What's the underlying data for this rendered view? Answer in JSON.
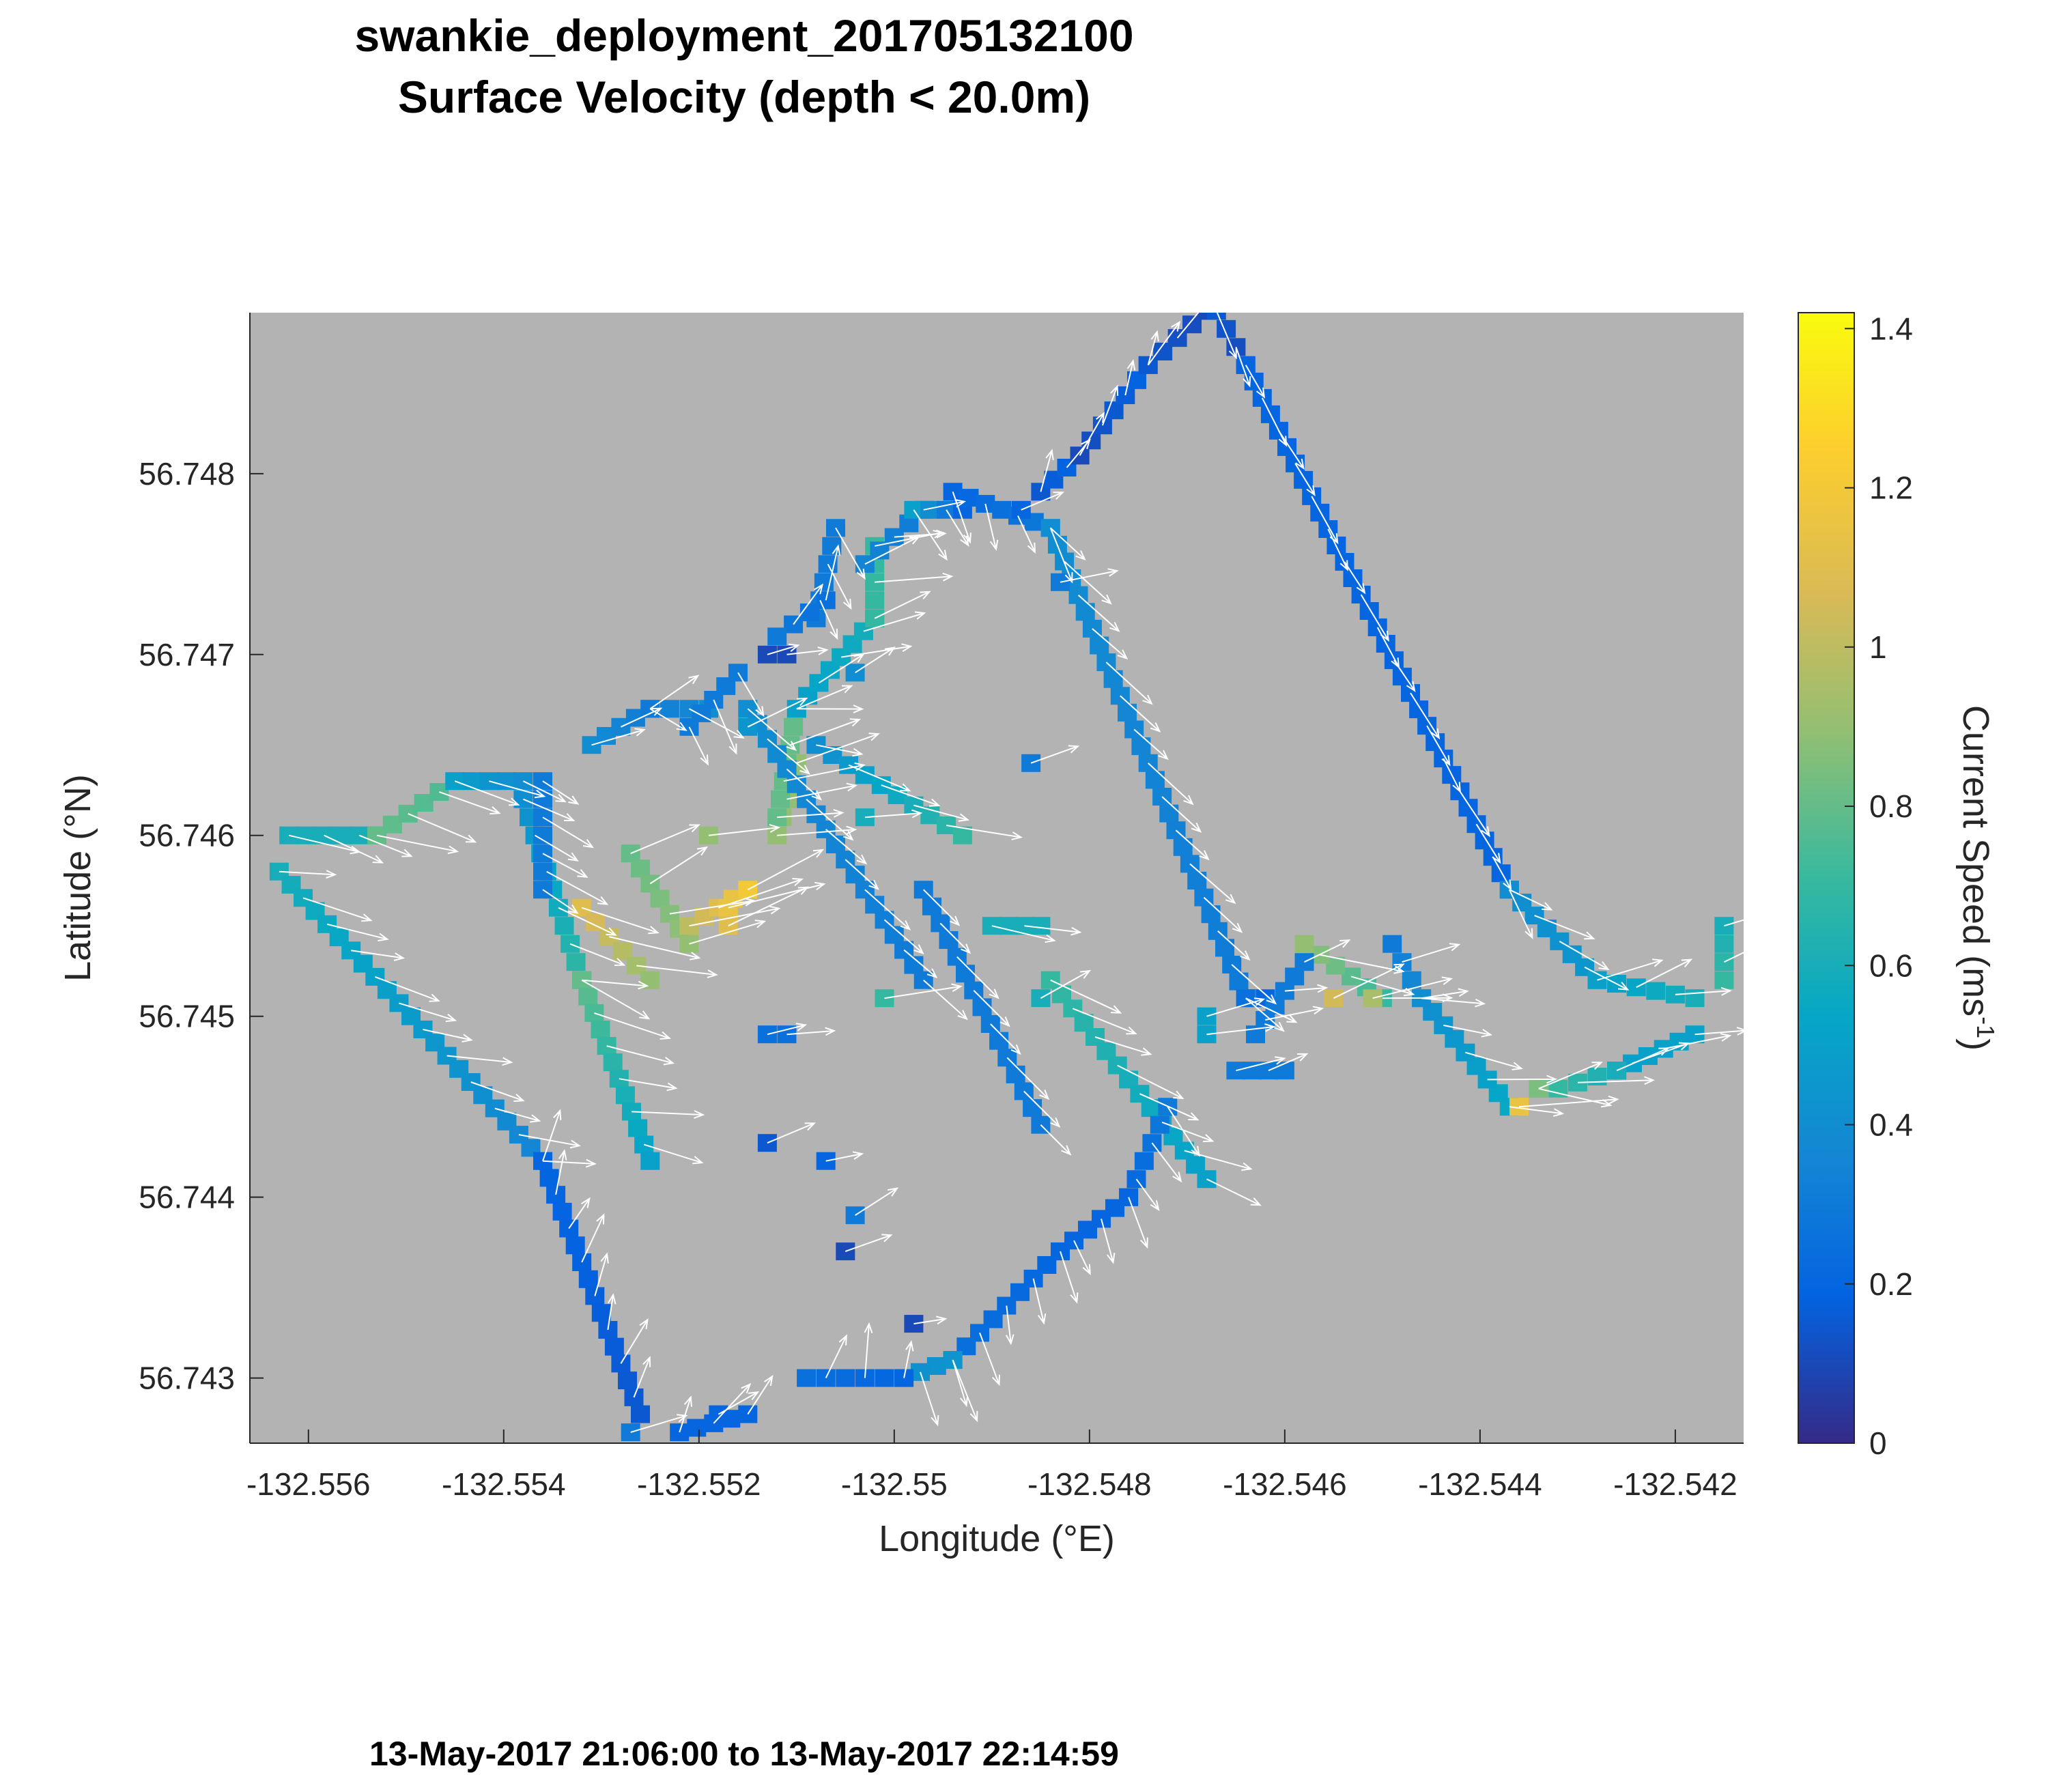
{
  "title": "swankie_deployment_201705132100",
  "subtitle": "Surface Velocity (depth < 20.0m)",
  "footer": "13-May-2017 21:06:00 to 13-May-2017 22:14:59",
  "colors": {
    "background": "#b3b3b3",
    "arrow": "#ffffff",
    "colormap": "parula"
  },
  "chart_data": {
    "type": "heatmap",
    "title": "swankie_deployment_201705132100",
    "subtitle": "Surface Velocity (depth < 20.0m)",
    "xlabel": "Longitude (°E)",
    "ylabel": "Latitude (°N)",
    "xlim": [
      -132.5566,
      -132.5413
    ],
    "ylim": [
      56.74264,
      56.74889
    ],
    "xticks": [
      -132.556,
      -132.554,
      -132.552,
      -132.55,
      -132.548,
      -132.546,
      -132.544,
      -132.542
    ],
    "xtick_labels": [
      "-132.556",
      "-132.554",
      "-132.552",
      "-132.55",
      "-132.548",
      "-132.546",
      "-132.544",
      "-132.542"
    ],
    "yticks": [
      56.743,
      56.744,
      56.745,
      56.746,
      56.747,
      56.748
    ],
    "ytick_labels": [
      "56.743",
      "56.744",
      "56.745",
      "56.746",
      "56.747",
      "56.748"
    ],
    "grid": false,
    "colorbar": {
      "label": "Current Speed (ms",
      "label_sup": "-1",
      "label_end": ")",
      "range": [
        0,
        1.42
      ],
      "ticks": [
        0,
        0.2,
        0.4,
        0.6,
        0.8,
        1,
        1.2,
        1.4
      ],
      "tick_labels": [
        "0",
        "0.2",
        "0.4",
        "0.6",
        "0.8",
        "1",
        "1.2",
        "1.4"
      ]
    },
    "cell_size_deg": [
      0.0002,
      0.0001
    ],
    "tracks": [
      {
        "from": [
          -132.5563,
          56.7458
        ],
        "to": [
          -132.5536,
          56.7442
        ],
        "speed": [
          0.6,
          0.35
        ],
        "dir": [
          1,
          -0.25
        ]
      },
      {
        "from": [
          -132.5536,
          56.7442
        ],
        "to": [
          -132.5526,
          56.7428
        ],
        "speed": [
          0.2,
          0.15
        ],
        "dir": [
          0.4,
          1
        ]
      },
      {
        "from": [
          -132.5522,
          56.7427
        ],
        "to": [
          -132.5515,
          56.7428
        ],
        "speed": [
          0.2,
          0.2
        ],
        "dir": [
          0.5,
          1
        ]
      },
      {
        "from": [
          -132.5562,
          56.746
        ],
        "to": [
          -132.5553,
          56.746
        ],
        "speed": [
          0.6,
          0.6
        ],
        "dir": [
          1,
          -0.4
        ]
      },
      {
        "from": [
          -132.5553,
          56.746
        ],
        "to": [
          -132.5545,
          56.7463
        ],
        "speed": [
          0.8,
          0.75
        ],
        "dir": [
          1,
          -0.3
        ]
      },
      {
        "from": [
          -132.5545,
          56.7463
        ],
        "to": [
          -132.5538,
          56.7463
        ],
        "speed": [
          0.5,
          0.4
        ],
        "dir": [
          1,
          -0.4
        ]
      },
      {
        "from": [
          -132.5538,
          56.7462
        ],
        "to": [
          -132.5532,
          56.7452
        ],
        "speed": [
          0.4,
          0.7
        ],
        "dir": [
          1,
          -0.5
        ]
      },
      {
        "from": [
          -132.5532,
          56.7452
        ],
        "to": [
          -132.5525,
          56.7442
        ],
        "speed": [
          0.8,
          0.5
        ],
        "dir": [
          1,
          -0.2
        ]
      },
      {
        "from": [
          -132.5532,
          56.7456
        ],
        "to": [
          -132.5525,
          56.7452
        ],
        "speed": [
          1.1,
          0.9
        ],
        "dir": [
          1,
          -0.3
        ]
      },
      {
        "from": [
          -132.5536,
          56.7463
        ],
        "to": [
          -132.5536,
          56.7457
        ],
        "speed": [
          0.3,
          0.3
        ],
        "dir": [
          1,
          -0.6
        ]
      },
      {
        "from": [
          -132.5527,
          56.7459
        ],
        "to": [
          -132.5521,
          56.7454
        ],
        "speed": [
          0.8,
          0.9
        ],
        "dir": [
          1,
          0.3
        ]
      },
      {
        "from": [
          -132.5521,
          56.7455
        ],
        "to": [
          -132.5515,
          56.7457
        ],
        "speed": [
          1.0,
          1.2
        ],
        "dir": [
          1,
          0.4
        ]
      },
      {
        "from": [
          -132.5531,
          56.7465
        ],
        "to": [
          -132.5525,
          56.7467
        ],
        "speed": [
          0.4,
          0.3
        ],
        "dir": [
          1,
          0.4
        ]
      },
      {
        "from": [
          -132.5525,
          56.7467
        ],
        "to": [
          -132.5519,
          56.7467
        ],
        "speed": [
          0.3,
          0.4
        ],
        "dir": [
          1,
          -0.6
        ]
      },
      {
        "from": [
          -132.5512,
          56.746
        ],
        "to": [
          -132.551,
          56.7464
        ],
        "speed": [
          0.9,
          0.9
        ],
        "dir": [
          1,
          0.3
        ]
      },
      {
        "from": [
          -132.5512,
          56.7461
        ],
        "to": [
          -132.551,
          56.7467
        ],
        "speed": [
          0.8,
          0.8
        ],
        "dir": [
          1,
          0.2
        ]
      },
      {
        "from": [
          -132.551,
          56.7467
        ],
        "to": [
          -132.5502,
          56.7472
        ],
        "speed": [
          0.5,
          0.6
        ],
        "dir": [
          1,
          0.3
        ]
      },
      {
        "from": [
          -132.5502,
          56.7472
        ],
        "to": [
          -132.5502,
          56.7476
        ],
        "speed": [
          0.7,
          0.7
        ],
        "dir": [
          1,
          0.3
        ]
      },
      {
        "from": [
          -132.5503,
          56.7475
        ],
        "to": [
          -132.5497,
          56.7478
        ],
        "speed": [
          0.35,
          0.3
        ],
        "dir": [
          1,
          0.2
        ]
      },
      {
        "from": [
          -132.5498,
          56.7478
        ],
        "to": [
          -132.5493,
          56.7478
        ],
        "speed": [
          0.5,
          0.2
        ],
        "dir": [
          0.6,
          -1
        ]
      },
      {
        "from": [
          -132.5515,
          56.7467
        ],
        "to": [
          -132.5497,
          56.7452
        ],
        "speed": [
          0.4,
          0.3
        ],
        "dir": [
          0.8,
          -0.7
        ]
      },
      {
        "from": [
          -132.5508,
          56.7465
        ],
        "to": [
          -132.5493,
          56.746
        ],
        "speed": [
          0.4,
          0.7
        ],
        "dir": [
          1,
          -0.3
        ]
      },
      {
        "from": [
          -132.5497,
          56.7457
        ],
        "to": [
          -132.5485,
          56.7444
        ],
        "speed": [
          0.3,
          0.3
        ],
        "dir": [
          0.7,
          -0.7
        ]
      },
      {
        "from": [
          -132.549,
          56.7455
        ],
        "to": [
          -132.5485,
          56.7455
        ],
        "speed": [
          0.6,
          0.6
        ],
        "dir": [
          1,
          -0.3
        ]
      },
      {
        "from": [
          -132.5484,
          56.7452
        ],
        "to": [
          -132.5468,
          56.7441
        ],
        "speed": [
          0.7,
          0.5
        ],
        "dir": [
          1,
          -0.4
        ]
      },
      {
        "from": [
          -132.5472,
          56.7445
        ],
        "to": [
          -132.5476,
          56.744
        ],
        "speed": [
          0.3,
          0.2
        ],
        "dir": [
          0.7,
          -1
        ]
      },
      {
        "from": [
          -132.5476,
          56.744
        ],
        "to": [
          -132.5483,
          56.7437
        ],
        "speed": [
          0.2,
          0.2
        ],
        "dir": [
          0.4,
          -1
        ]
      },
      {
        "from": [
          -132.5483,
          56.7437
        ],
        "to": [
          -132.5494,
          56.7431
        ],
        "speed": [
          0.2,
          0.25
        ],
        "dir": [
          0.3,
          -1
        ]
      },
      {
        "from": [
          -132.5494,
          56.7431
        ],
        "to": [
          -132.5499,
          56.743
        ],
        "speed": [
          0.45,
          0.4
        ],
        "dir": [
          0.3,
          -1
        ]
      },
      {
        "from": [
          -132.5499,
          56.743
        ],
        "to": [
          -132.5509,
          56.743
        ],
        "speed": [
          0.2,
          0.25
        ],
        "dir": [
          0.3,
          1
        ]
      },
      {
        "from": [
          -132.5521,
          56.7466
        ],
        "to": [
          -132.5516,
          56.7469
        ],
        "speed": [
          0.3,
          0.3
        ],
        "dir": [
          0.5,
          -1
        ]
      },
      {
        "from": [
          -132.5494,
          56.7479
        ],
        "to": [
          -132.5484,
          56.7477
        ],
        "speed": [
          0.2,
          0.3
        ],
        "dir": [
          0.4,
          -1
        ]
      },
      {
        "from": [
          -132.5484,
          56.7477
        ],
        "to": [
          -132.5464,
          56.7451
        ],
        "speed": [
          0.4,
          0.3
        ],
        "dir": [
          1,
          -0.9
        ]
      },
      {
        "from": [
          -132.5464,
          56.7451
        ],
        "to": [
          -132.5462,
          56.7451
        ],
        "speed": [
          0.25,
          0.2
        ],
        "dir": [
          1,
          -0.5
        ]
      },
      {
        "from": [
          -132.5485,
          56.7479
        ],
        "to": [
          -132.5481,
          56.7481
        ],
        "speed": [
          0.15,
          0.2
        ],
        "dir": [
          0.5,
          1
        ]
      },
      {
        "from": [
          -132.5481,
          56.7481
        ],
        "to": [
          -132.5474,
          56.7486
        ],
        "speed": [
          0.1,
          0.2
        ],
        "dir": [
          0.5,
          1
        ]
      },
      {
        "from": [
          -132.5474,
          56.7486
        ],
        "to": [
          -132.5468,
          56.7489
        ],
        "speed": [
          0.15,
          0.1
        ],
        "dir": [
          0.5,
          1
        ]
      },
      {
        "from": [
          -132.5467,
          56.7489
        ],
        "to": [
          -132.5464,
          56.7486
        ],
        "speed": [
          0.15,
          0.1
        ],
        "dir": [
          0.3,
          -1
        ]
      },
      {
        "from": [
          -132.5464,
          56.7486
        ],
        "to": [
          -132.5437,
          56.7457
        ],
        "speed": [
          0.2,
          0.2
        ],
        "dir": [
          0.6,
          -1
        ]
      },
      {
        "from": [
          -132.5437,
          56.7457
        ],
        "to": [
          -132.5428,
          56.7452
        ],
        "speed": [
          0.4,
          0.45
        ],
        "dir": [
          1,
          -0.5
        ]
      },
      {
        "from": [
          -132.5428,
          56.7452
        ],
        "to": [
          -132.5418,
          56.7451
        ],
        "speed": [
          0.5,
          0.6
        ],
        "dir": [
          1,
          0.2
        ]
      },
      {
        "from": [
          -132.5415,
          56.7455
        ],
        "to": [
          -132.5415,
          56.7452
        ],
        "speed": [
          0.6,
          0.7
        ],
        "dir": [
          1,
          0.3
        ]
      },
      {
        "from": [
          -132.5418,
          56.7449
        ],
        "to": [
          -132.5426,
          56.7447
        ],
        "speed": [
          0.5,
          0.5
        ],
        "dir": [
          1,
          0.3
        ]
      },
      {
        "from": [
          -132.5426,
          56.7447
        ],
        "to": [
          -132.5432,
          56.7446
        ],
        "speed": [
          0.6,
          0.7
        ],
        "dir": [
          1,
          0.2
        ]
      },
      {
        "from": [
          -132.5434,
          56.7446
        ],
        "to": [
          -132.5436,
          56.7445
        ],
        "speed": [
          0.8,
          1.1
        ],
        "dir": [
          1,
          -0.2
        ]
      },
      {
        "from": [
          -132.5437,
          56.7445
        ],
        "to": [
          -132.5446,
          56.7451
        ],
        "speed": [
          0.55,
          0.4
        ],
        "dir": [
          1,
          -0.2
        ]
      },
      {
        "from": [
          -132.5446,
          56.7451
        ],
        "to": [
          -132.5449,
          56.7454
        ],
        "speed": [
          0.4,
          0.3
        ],
        "dir": [
          1,
          0.2
        ]
      },
      {
        "from": [
          -132.545,
          56.7451
        ],
        "to": [
          -132.5458,
          56.7454
        ],
        "speed": [
          0.7,
          0.9
        ],
        "dir": [
          1,
          -0.2
        ]
      },
      {
        "from": [
          -132.5458,
          56.7453
        ],
        "to": [
          -132.5463,
          56.7449
        ],
        "speed": [
          0.3,
          0.3
        ],
        "dir": [
          1,
          0.3
        ]
      },
      {
        "from": [
          -132.5465,
          56.7447
        ],
        "to": [
          -132.546,
          56.7447
        ],
        "speed": [
          0.3,
          0.3
        ],
        "dir": [
          1,
          0.2
        ]
      },
      {
        "from": [
          -132.5506,
          56.7477
        ],
        "to": [
          -132.5508,
          56.7472
        ],
        "speed": [
          0.3,
          0.3
        ],
        "dir": [
          0.5,
          -1
        ]
      },
      {
        "from": [
          -132.5507,
          56.7473
        ],
        "to": [
          -132.5512,
          56.7471
        ],
        "speed": [
          0.25,
          0.3
        ],
        "dir": [
          0.5,
          1
        ]
      }
    ],
    "isolated_cells": [
      {
        "lon": -132.5513,
        "lat": 56.747,
        "speed": 0.1
      },
      {
        "lon": -132.5511,
        "lat": 56.747,
        "speed": 0.1
      },
      {
        "lon": -132.5515,
        "lat": 56.7466,
        "speed": 0.45
      },
      {
        "lon": -132.5513,
        "lat": 56.7449,
        "speed": 0.25
      },
      {
        "lon": -132.5511,
        "lat": 56.7449,
        "speed": 0.25
      },
      {
        "lon": -132.5513,
        "lat": 56.7443,
        "speed": 0.15
      },
      {
        "lon": -132.5507,
        "lat": 56.7442,
        "speed": 0.2
      },
      {
        "lon": -132.5504,
        "lat": 56.7439,
        "speed": 0.3
      },
      {
        "lon": -132.5505,
        "lat": 56.7437,
        "speed": 0.1
      },
      {
        "lon": -132.5498,
        "lat": 56.7433,
        "speed": 0.1
      },
      {
        "lon": -132.5518,
        "lat": 56.7428,
        "speed": 0.2
      },
      {
        "lon": -132.5527,
        "lat": 56.7427,
        "speed": 0.3
      },
      {
        "lon": -132.5519,
        "lat": 56.746,
        "speed": 0.9
      },
      {
        "lon": -132.5517,
        "lat": 56.7455,
        "speed": 1.1
      },
      {
        "lon": -132.5517,
        "lat": 56.7456,
        "speed": 1.15
      },
      {
        "lon": -132.5503,
        "lat": 56.7461,
        "speed": 0.6
      },
      {
        "lon": -132.5487,
        "lat": 56.7478,
        "speed": 0.2
      },
      {
        "lon": -132.5483,
        "lat": 56.7474,
        "speed": 0.3
      },
      {
        "lon": -132.5504,
        "lat": 56.7469,
        "speed": 0.4
      },
      {
        "lon": -132.5486,
        "lat": 56.7464,
        "speed": 0.3
      },
      {
        "lon": -132.5501,
        "lat": 56.7451,
        "speed": 0.7
      },
      {
        "lon": -132.5485,
        "lat": 56.7451,
        "speed": 0.6
      },
      {
        "lon": -132.5468,
        "lat": 56.745,
        "speed": 0.5
      },
      {
        "lon": -132.5468,
        "lat": 56.7449,
        "speed": 0.5
      },
      {
        "lon": -132.5455,
        "lat": 56.7451,
        "speed": 1.05
      },
      {
        "lon": -132.5451,
        "lat": 56.7451,
        "speed": 0.95
      },
      {
        "lon": -132.5436,
        "lat": 56.7445,
        "speed": 1.15
      },
      {
        "lon": -132.5434,
        "lat": 56.7446,
        "speed": 0.85
      }
    ],
    "vector_field": "surface current vectors drawn as white arrows at the observation cells, predominantly directed toward the east/south-east"
  }
}
